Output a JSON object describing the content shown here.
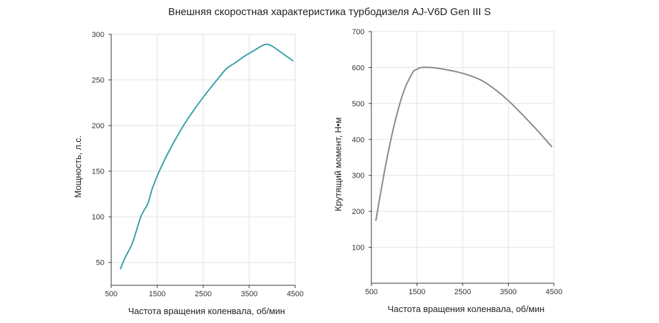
{
  "title": "Внешняя скоростная характеристика турбодизеля AJ-V6D Gen III S",
  "chart_data": [
    {
      "type": "line",
      "title": "",
      "xlabel": "Частота вращения коленвала, об/мин",
      "ylabel": "Мощность, л.с.",
      "xlim": [
        500,
        4500
      ],
      "ylim": [
        25,
        300
      ],
      "xticks": [
        500,
        1500,
        2500,
        3500,
        4500
      ],
      "yticks": [
        50,
        100,
        150,
        200,
        250,
        300
      ],
      "grid": true,
      "color": "#3aa0a8",
      "series": [
        {
          "x": [
            700,
            800,
            950,
            1050,
            1150,
            1300,
            1400,
            1600,
            1800,
            2000,
            2200,
            2500,
            2800,
            3000,
            3200,
            3400,
            3600,
            3800,
            3900,
            4000,
            4200,
            4450
          ],
          "y": [
            43,
            55,
            70,
            85,
            101,
            115,
            132,
            156,
            176,
            194,
            210,
            231,
            250,
            262,
            269,
            276,
            282,
            288,
            289,
            287,
            280,
            271
          ]
        }
      ]
    },
    {
      "type": "line",
      "title": "",
      "xlabel": "Частота вращения коленвала, об/мин",
      "ylabel": "Крутящий момент, Н•м",
      "xlim": [
        500,
        4500
      ],
      "ylim": [
        0,
        700
      ],
      "xticks": [
        500,
        1500,
        2500,
        3500,
        4500
      ],
      "yticks": [
        100,
        200,
        300,
        400,
        500,
        600,
        700
      ],
      "grid": true,
      "color": "#888888",
      "series": [
        {
          "x": [
            600,
            800,
            1000,
            1200,
            1400,
            1500,
            1600,
            1800,
            2000,
            2300,
            2600,
            2900,
            3200,
            3500,
            3800,
            4100,
            4450
          ],
          "y": [
            175,
            320,
            440,
            530,
            585,
            595,
            600,
            600,
            597,
            590,
            580,
            565,
            540,
            508,
            470,
            430,
            380
          ]
        }
      ]
    }
  ]
}
